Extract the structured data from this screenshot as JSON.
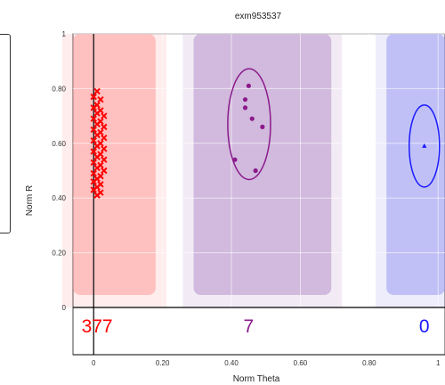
{
  "chart_data": {
    "type": "scatter",
    "title": "exm953537",
    "xlabel": "Norm Theta",
    "ylabel": "Norm R",
    "xlim": [
      -0.06,
      1.02
    ],
    "ylim": [
      0,
      1.0
    ],
    "x_ticks": [
      0,
      0.2,
      0.4,
      0.6,
      0.8,
      1.0
    ],
    "x_tick_labels": [
      "0",
      "0.20",
      "0.40",
      "0.60",
      "0.80",
      "1"
    ],
    "y_ticks": [
      0,
      0.2,
      0.4,
      0.6,
      0.8,
      1.0
    ],
    "y_tick_labels": [
      "0",
      "0.20",
      "0.40",
      "0.60",
      "0.80",
      "1"
    ],
    "grid": true,
    "regions": [
      {
        "x0": -0.06,
        "x1": 0.18,
        "color": "#ff9a9a"
      },
      {
        "x0": 0.29,
        "x1": 0.69,
        "color": "#b792c8"
      },
      {
        "x0": 0.85,
        "x1": 1.02,
        "color": "#9b9bf0"
      }
    ],
    "clusters": [
      {
        "color": "#ff0000",
        "count": "377",
        "marker": "x",
        "center": [
          0.01,
          0.61
        ],
        "points": [
          [
            0.01,
            0.79
          ],
          [
            0.0,
            0.77
          ],
          [
            0.02,
            0.76
          ],
          [
            0.01,
            0.74
          ],
          [
            0.0,
            0.73
          ],
          [
            0.02,
            0.72
          ],
          [
            0.01,
            0.71
          ],
          [
            0.03,
            0.7
          ],
          [
            0.0,
            0.69
          ],
          [
            0.02,
            0.68
          ],
          [
            0.01,
            0.67
          ],
          [
            0.03,
            0.66
          ],
          [
            0.0,
            0.65
          ],
          [
            0.02,
            0.64
          ],
          [
            0.01,
            0.63
          ],
          [
            0.03,
            0.62
          ],
          [
            0.0,
            0.61
          ],
          [
            0.02,
            0.6
          ],
          [
            0.01,
            0.59
          ],
          [
            0.03,
            0.58
          ],
          [
            0.0,
            0.57
          ],
          [
            0.02,
            0.56
          ],
          [
            0.01,
            0.55
          ],
          [
            0.03,
            0.54
          ],
          [
            0.0,
            0.53
          ],
          [
            0.02,
            0.52
          ],
          [
            0.01,
            0.51
          ],
          [
            0.03,
            0.5
          ],
          [
            0.0,
            0.49
          ],
          [
            0.02,
            0.48
          ],
          [
            0.01,
            0.47
          ],
          [
            0.0,
            0.46
          ],
          [
            0.02,
            0.45
          ],
          [
            0.01,
            0.44
          ],
          [
            0.0,
            0.43
          ],
          [
            0.02,
            0.42
          ],
          [
            0.01,
            0.41
          ]
        ]
      },
      {
        "color": "#8b1a8b",
        "count": "7",
        "marker": "circle",
        "center": [
          0.45,
          0.67
        ],
        "points": [
          [
            0.45,
            0.81
          ],
          [
            0.44,
            0.76
          ],
          [
            0.46,
            0.69
          ],
          [
            0.49,
            0.66
          ],
          [
            0.47,
            0.5
          ],
          [
            0.41,
            0.54
          ],
          [
            0.44,
            0.73
          ]
        ]
      },
      {
        "color": "#1a1aff",
        "count": "0",
        "marker": "triangle",
        "center": [
          0.96,
          0.59
        ],
        "points": [
          [
            0.96,
            0.59
          ]
        ]
      }
    ]
  }
}
